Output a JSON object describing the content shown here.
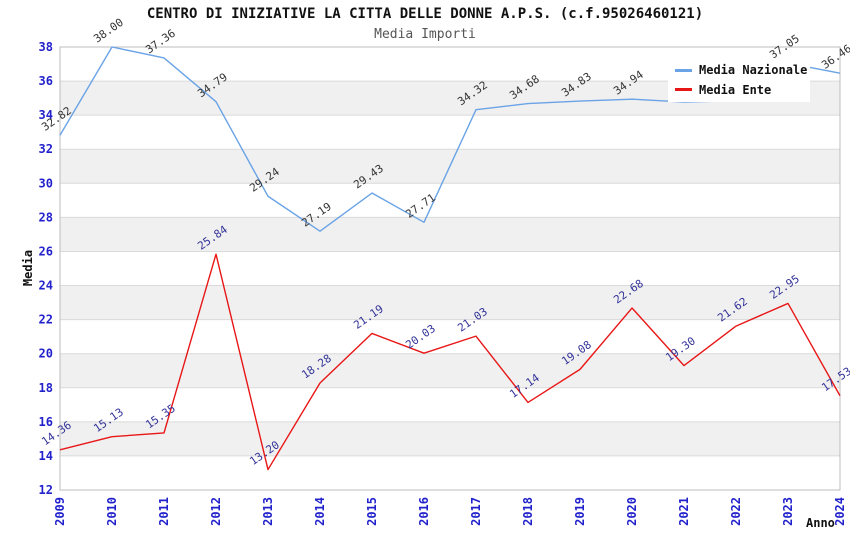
{
  "header": {
    "title": "CENTRO DI INIZIATIVE LA CITTA DELLE DONNE A.P.S. (c.f.95026460121)",
    "subtitle": "Media Importi"
  },
  "axes": {
    "ylabel": "Media",
    "xlabel": "Anno",
    "ylim": [
      12,
      38
    ],
    "ytick_step": 2,
    "x_categories": [
      "2009",
      "2010",
      "2011",
      "2012",
      "2013",
      "2014",
      "2015",
      "2016",
      "2017",
      "2018",
      "2019",
      "2020",
      "2021",
      "2022",
      "2023",
      "2024"
    ]
  },
  "legend": {
    "position": "top-right",
    "items": [
      {
        "label": "Media Nazionale",
        "color": "#6aa3e6"
      },
      {
        "label": "Media Ente",
        "color": "#e81717"
      }
    ]
  },
  "chart_data": {
    "type": "line",
    "title": "Media Importi",
    "xlabel": "Anno",
    "ylabel": "Media",
    "ylim": [
      12,
      38
    ],
    "grid": "horizontal-bands",
    "legend_position": "top-right",
    "x": [
      2009,
      2010,
      2011,
      2012,
      2013,
      2014,
      2015,
      2016,
      2017,
      2018,
      2019,
      2020,
      2021,
      2022,
      2023,
      2024
    ],
    "series": [
      {
        "name": "Media Nazionale",
        "color": "#6aa3e6",
        "label_color": "#333333",
        "values": [
          32.82,
          38.0,
          37.36,
          34.79,
          29.24,
          27.19,
          29.43,
          27.71,
          34.32,
          34.68,
          34.83,
          34.94,
          34.77,
          34.85,
          37.05,
          36.46
        ],
        "labels": [
          "32.82",
          "38.00",
          "37.36",
          "34.79",
          "29.24",
          "27.19",
          "29.43",
          "27.71",
          "34.32",
          "34.68",
          "34.83",
          "34.94",
          "",
          "",
          "37.05",
          "36.46"
        ]
      },
      {
        "name": "Media Ente",
        "color": "#e81717",
        "label_color": "#333399",
        "values": [
          14.36,
          15.13,
          15.35,
          25.84,
          13.2,
          18.28,
          21.19,
          20.03,
          21.03,
          17.14,
          19.08,
          22.68,
          19.3,
          21.62,
          22.95,
          17.53
        ],
        "labels": [
          "14.36",
          "15.13",
          "15.35",
          "25.84",
          "13.20",
          "18.28",
          "21.19",
          "20.03",
          "21.03",
          "17.14",
          "19.08",
          "22.68",
          "19.30",
          "21.62",
          "22.95",
          "17.53"
        ]
      }
    ]
  },
  "style": {
    "tick_color": "#2222cc",
    "band_fill": "#f0f0f0",
    "gridline_color": "#dadada",
    "plot_border_color": "#bdbdbd",
    "background": "#ffffff",
    "title_color": "#111111",
    "subtitle_color": "#555555"
  }
}
